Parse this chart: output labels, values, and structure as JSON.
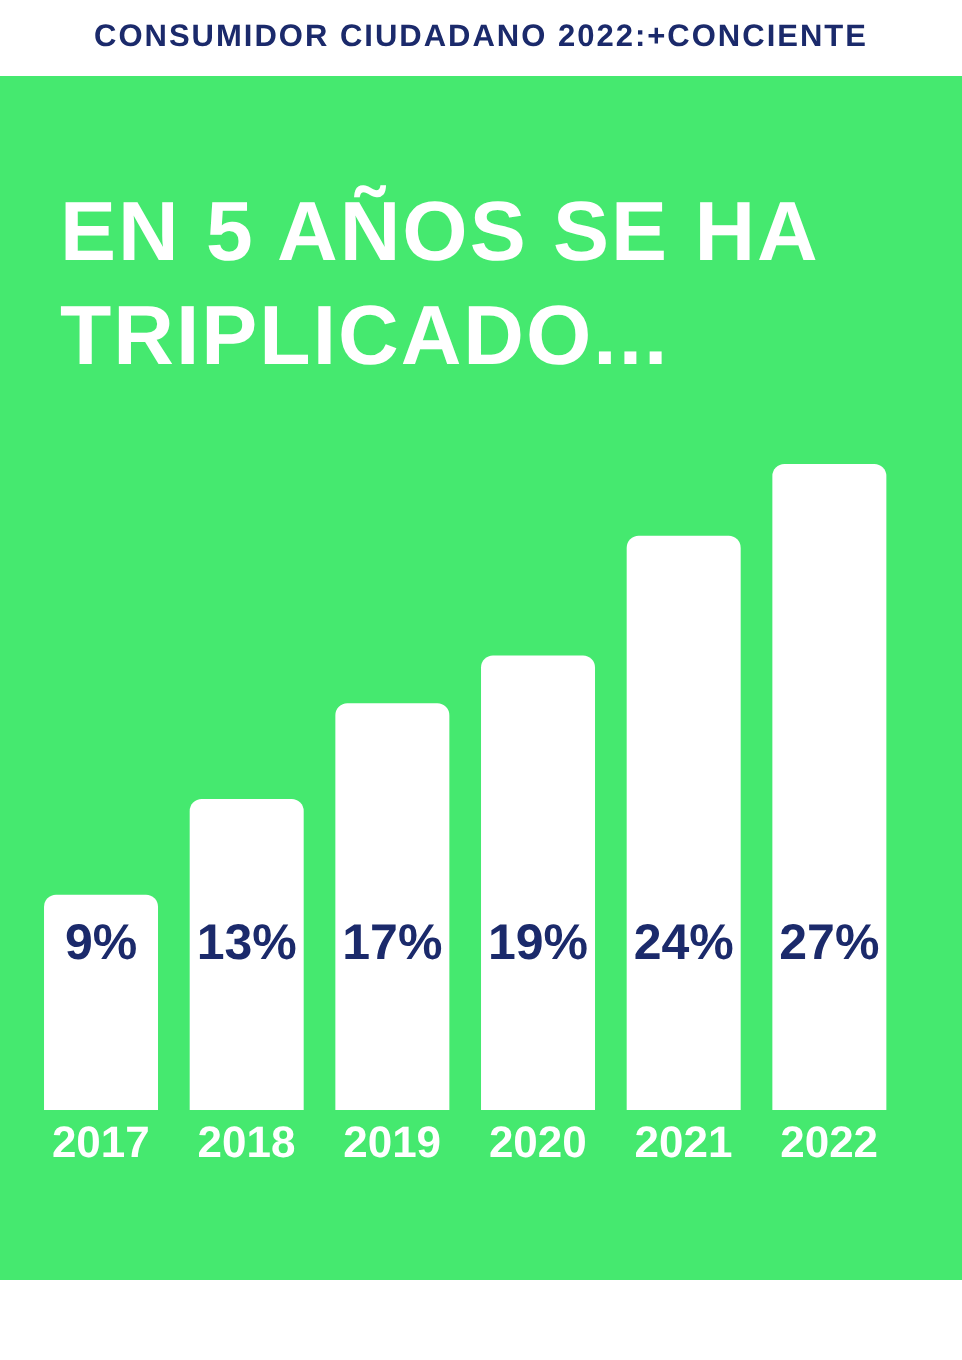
{
  "chart_data": {
    "type": "bar",
    "title": "CONSUMIDOR CIUDADANO 2022:+CONCIENTE",
    "subtitle": "EN 5 AÑOS SE HA TRIPLICADO...",
    "categories": [
      "2017",
      "2018",
      "2019",
      "2020",
      "2021",
      "2022"
    ],
    "values": [
      9,
      13,
      17,
      19,
      24,
      27
    ],
    "value_labels": [
      "9%",
      "13%",
      "17%",
      "19%",
      "24%",
      "27%"
    ],
    "color": "#ffffff",
    "grid": false,
    "legend": false
  }
}
